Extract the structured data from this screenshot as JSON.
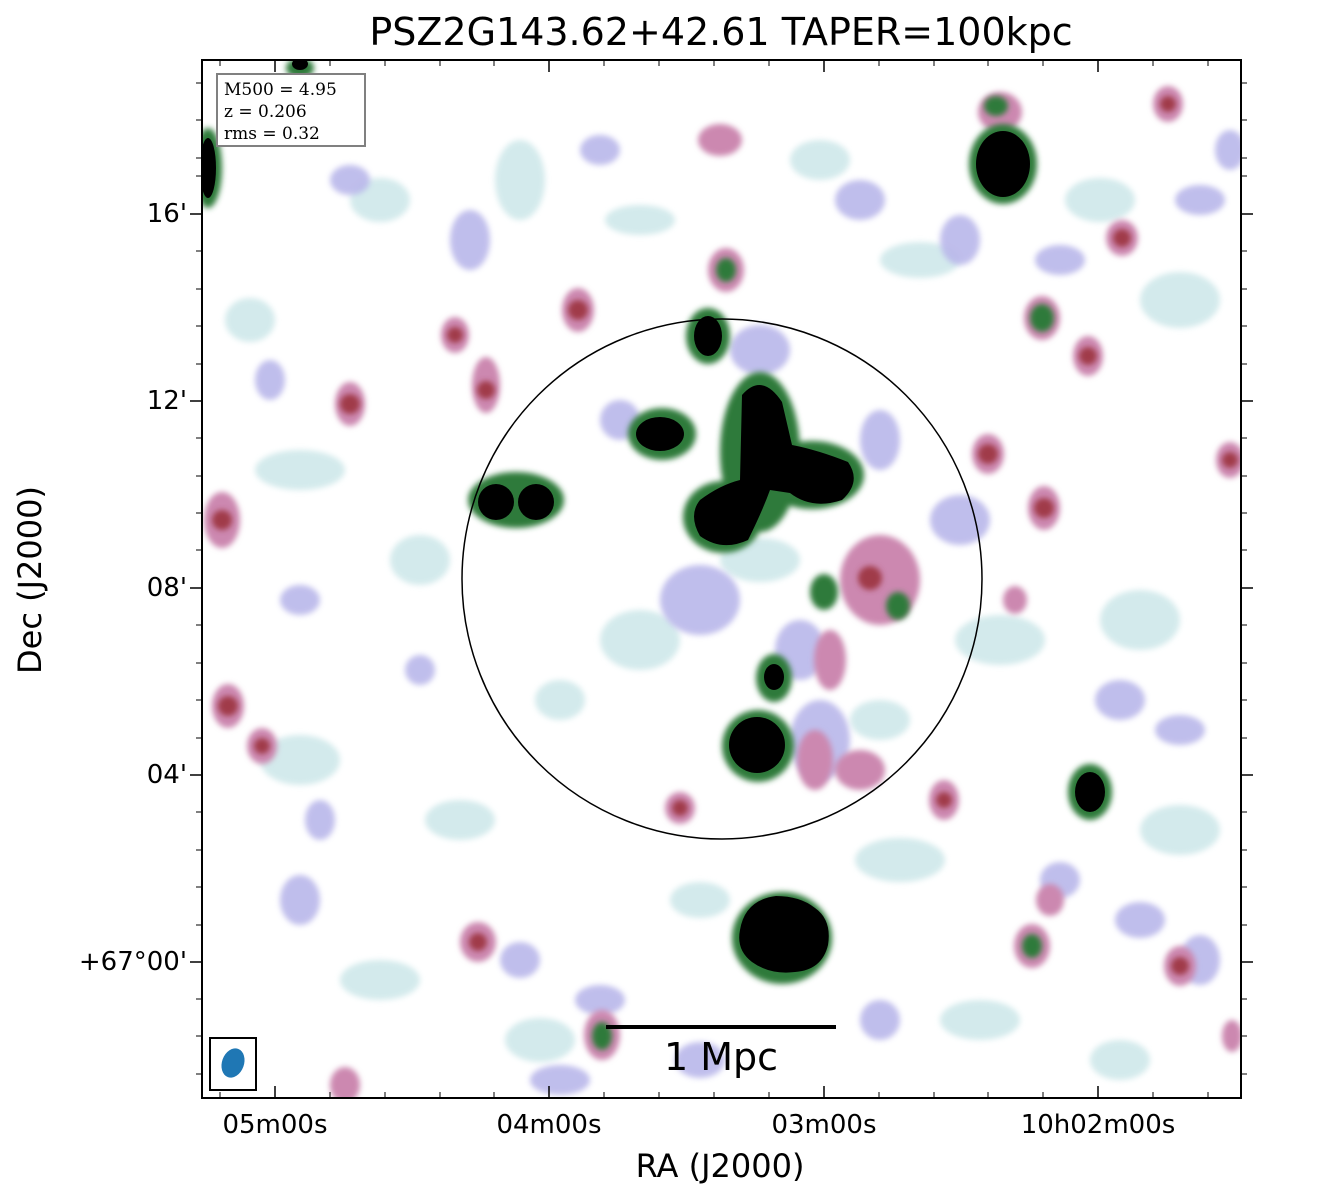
{
  "figure": {
    "title": "PSZ2G143.62+42.61 TAPER=100kpc",
    "xlabel": "RA (J2000)",
    "ylabel": "Dec (J2000)"
  },
  "axes": {
    "x_ticks": [
      "05m00s",
      "04m00s",
      "03m00s",
      "10h02m00s"
    ],
    "y_ticks": [
      "16'",
      "12'",
      "08'",
      "04'",
      "+67°00'"
    ]
  },
  "info": {
    "mass": "M500 = 4.95",
    "redshift": "z = 0.206",
    "rms": "rms = 0.32"
  },
  "scalebar": {
    "label": "1 Mpc"
  },
  "colors": {
    "faint_emission": "#cfe8ea",
    "low_emission": "#b9b7ea",
    "mid_emission": "#cc88b0",
    "high_emission": "#a03a4a",
    "peak_ring": "#2e7a3a",
    "saturated": "#000000",
    "beam": "#1f77b4"
  }
}
